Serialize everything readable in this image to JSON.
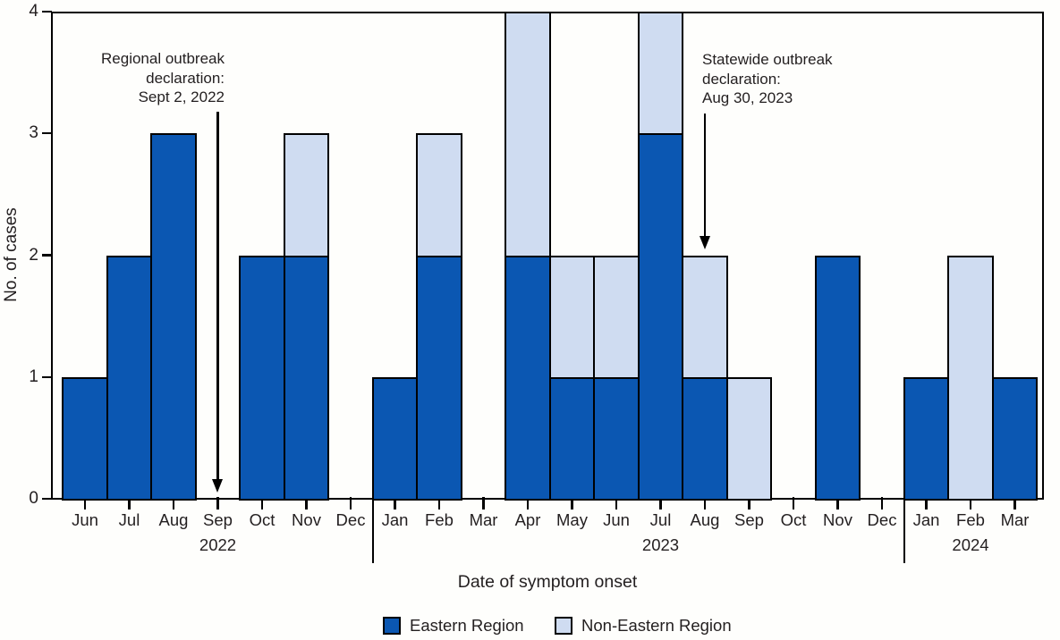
{
  "chart_data": {
    "type": "bar",
    "stacked": true,
    "xlabel": "Date of symptom onset",
    "ylabel": "No. of cases",
    "ylim": [
      0,
      4
    ],
    "yticks": [
      0,
      1,
      2,
      3,
      4
    ],
    "grid": false,
    "legend_position": "bottom",
    "categories": [
      "Jun",
      "Jul",
      "Aug",
      "Sep",
      "Oct",
      "Nov",
      "Dec",
      "Jan",
      "Feb",
      "Mar",
      "Apr",
      "May",
      "Jun",
      "Jul",
      "Aug",
      "Sep",
      "Oct",
      "Nov",
      "Dec",
      "Jan",
      "Feb",
      "Mar"
    ],
    "year_groups": [
      {
        "label": "2022",
        "start_index": 0,
        "end_index": 6,
        "label_index": 3
      },
      {
        "label": "2023",
        "start_index": 7,
        "end_index": 18,
        "label_index": 13
      },
      {
        "label": "2024",
        "start_index": 19,
        "end_index": 21,
        "label_index": 20
      }
    ],
    "series": [
      {
        "name": "Eastern Region",
        "color": "#0B57B2",
        "values": [
          1,
          2,
          3,
          0,
          2,
          2,
          0,
          1,
          2,
          0,
          2,
          1,
          1,
          3,
          1,
          0,
          0,
          2,
          0,
          1,
          0,
          1
        ]
      },
      {
        "name": "Non-Eastern Region",
        "color": "#CFDCF1",
        "values": [
          0,
          0,
          0,
          0,
          0,
          1,
          0,
          0,
          1,
          0,
          2,
          1,
          1,
          1,
          1,
          1,
          0,
          0,
          0,
          0,
          2,
          0
        ]
      }
    ],
    "annotations": [
      {
        "text_lines": [
          "Regional outbreak",
          "declaration:",
          "Sept 2, 2022"
        ],
        "align": "right",
        "arrow_month_index": 3,
        "arrow_points_to_value": 0
      },
      {
        "text_lines": [
          "Statewide outbreak",
          "declaration:",
          "Aug 30, 2023"
        ],
        "align": "left",
        "arrow_month_index": 14,
        "arrow_points_to_value": 2
      }
    ],
    "legend": [
      {
        "label": "Eastern Region",
        "color": "#0B57B2"
      },
      {
        "label": "Non-Eastern Region",
        "color": "#CFDCF1"
      }
    ]
  }
}
